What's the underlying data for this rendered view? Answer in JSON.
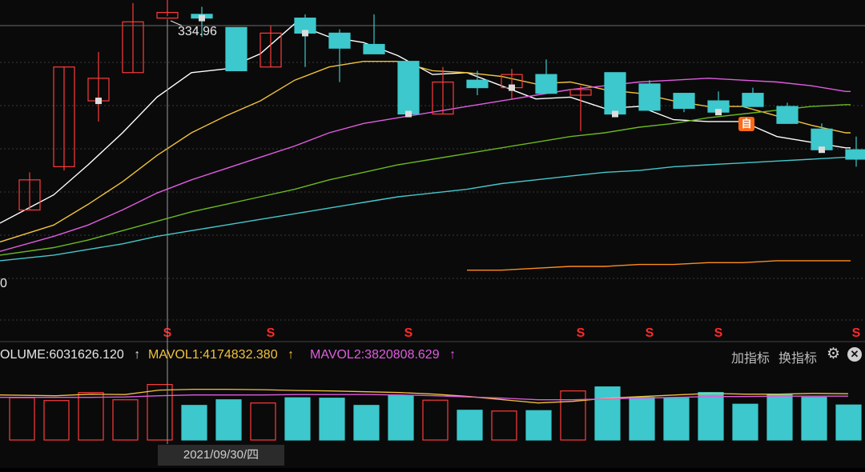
{
  "chart_data": {
    "type": "candlestick",
    "price_ylim": [
      175,
      340
    ],
    "annotations": {
      "high_price_label": "334.96",
      "left_edge_label": "0",
      "badge_label": "自",
      "marker_symbol": "S"
    },
    "candles": [
      {
        "open": 242,
        "close": 258,
        "high": 262,
        "low": 242
      },
      {
        "open": 265,
        "close": 318,
        "high": 318,
        "low": 263
      },
      {
        "open": 300,
        "close": 312,
        "high": 326,
        "low": 289
      },
      {
        "open": 315,
        "close": 342,
        "high": 352,
        "low": 315
      },
      {
        "open": 344,
        "close": 347,
        "high": 360,
        "low": 345
      },
      {
        "open": 346,
        "close": 344,
        "high": 350,
        "low": 334
      },
      {
        "open": 339,
        "close": 316,
        "high": 338,
        "low": 316
      },
      {
        "open": 318,
        "close": 336,
        "high": 340,
        "low": 318
      },
      {
        "open": 344,
        "close": 336,
        "high": 346,
        "low": 318
      },
      {
        "open": 336,
        "close": 328,
        "high": 338,
        "low": 310
      },
      {
        "open": 330,
        "close": 325,
        "high": 346,
        "low": 325
      },
      {
        "open": 321,
        "close": 293,
        "high": 321,
        "low": 292
      },
      {
        "open": 293,
        "close": 310,
        "high": 318,
        "low": 293
      },
      {
        "open": 311,
        "close": 307,
        "high": 316,
        "low": 303
      },
      {
        "open": 307,
        "close": 314,
        "high": 317,
        "low": 301
      },
      {
        "open": 314,
        "close": 304,
        "high": 322,
        "low": 304
      },
      {
        "open": 303,
        "close": 306,
        "high": 308,
        "low": 284
      },
      {
        "open": 315,
        "close": 293,
        "high": 314,
        "low": 293
      },
      {
        "open": 309,
        "close": 295,
        "high": 311,
        "low": 295
      },
      {
        "open": 304,
        "close": 296,
        "high": 304,
        "low": 294
      },
      {
        "open": 300,
        "close": 294,
        "high": 305,
        "low": 294
      },
      {
        "open": 304,
        "close": 297,
        "high": 307,
        "low": 297
      },
      {
        "open": 297,
        "close": 288,
        "high": 299,
        "low": 288
      },
      {
        "open": 285,
        "close": 274,
        "high": 288,
        "low": 274
      },
      {
        "open": 274,
        "close": 269,
        "high": 281,
        "low": 265
      }
    ],
    "ma_lines": [
      {
        "color": "#ffffff",
        "values": [
          235,
          250,
          266,
          283,
          302,
          315,
          317,
          325,
          341,
          334,
          331,
          324,
          314,
          315,
          308,
          301,
          302,
          296,
          297,
          290,
          289,
          289,
          281,
          278,
          275
        ]
      },
      {
        "color": "#f0c23c",
        "values": [
          225,
          234,
          245,
          257,
          271,
          283,
          292,
          300,
          311,
          318,
          321,
          321,
          316,
          315,
          313,
          309,
          310,
          306,
          304,
          300,
          297,
          297,
          292,
          287,
          283
        ]
      },
      {
        "color": "#e05ce0",
        "values": [
          220,
          228,
          234,
          242,
          251,
          258,
          264,
          270,
          276,
          283,
          288,
          291,
          294,
          297,
          300,
          303,
          306,
          308,
          310,
          311,
          312,
          311,
          310,
          308,
          305
        ]
      },
      {
        "color": "#6ab820",
        "values": [
          218,
          222,
          226,
          231,
          236,
          241,
          245,
          249,
          253,
          258,
          262,
          266,
          269,
          272,
          275,
          278,
          281,
          283,
          286,
          288,
          291,
          293,
          295,
          297,
          298
        ]
      },
      {
        "color": "#45c8cc",
        "values": [
          215,
          218,
          221,
          224,
          228,
          231,
          234,
          237,
          240,
          243,
          246,
          249,
          251,
          253,
          256,
          258,
          260,
          262,
          263,
          265,
          266,
          267,
          268,
          269,
          270
        ]
      },
      {
        "color": "#ff8c1a",
        "values": [
          null,
          null,
          null,
          null,
          null,
          null,
          null,
          null,
          null,
          null,
          null,
          null,
          null,
          210,
          210,
          211,
          212,
          212,
          213,
          213,
          214,
          214,
          215,
          215,
          215
        ]
      }
    ],
    "volume": [
      105,
      98,
      118,
      100,
      138,
      86,
      100,
      92,
      105,
      104,
      86,
      110,
      99,
      74,
      72,
      73,
      122,
      132,
      106,
      104,
      118,
      89,
      114,
      106,
      87
    ],
    "volume_ylim": [
      0,
      175
    ],
    "mavol_lines": [
      {
        "color": "#f0c23c",
        "values": [
          112,
          110,
          114,
          113,
          124,
          126,
          126,
          125,
          123,
          122,
          120,
          118,
          114,
          108,
          100,
          92,
          96,
          104,
          108,
          112,
          116,
          114,
          114,
          116,
          115
        ]
      },
      {
        "color": "#e05ce0",
        "values": [
          106,
          106,
          106,
          107,
          110,
          112,
          112,
          112,
          113,
          113,
          113,
          112,
          110,
          107,
          104,
          100,
          100,
          102,
          104,
          106,
          108,
          108,
          109,
          109,
          109
        ]
      }
    ],
    "markers_at": [
      4,
      7,
      11,
      16,
      18,
      20,
      24
    ]
  },
  "indicator": {
    "volume_label": "OLUME:6031626.120",
    "mavol1_label": "MAVOL1:4174832.380",
    "mavol2_label": "MAVOL2:3820808.629",
    "arrow": "↑",
    "add_indicator": "加指标",
    "switch_indicator": "换指标",
    "close_symbol": "✕"
  },
  "crosshair_date": "2021/09/30/四",
  "colors": {
    "up": "#ff3b3b",
    "down": "#3cc8cc",
    "volume_label": "#e6e6e6",
    "mavol1": "#f0c23c",
    "mavol2": "#e05ce0"
  }
}
